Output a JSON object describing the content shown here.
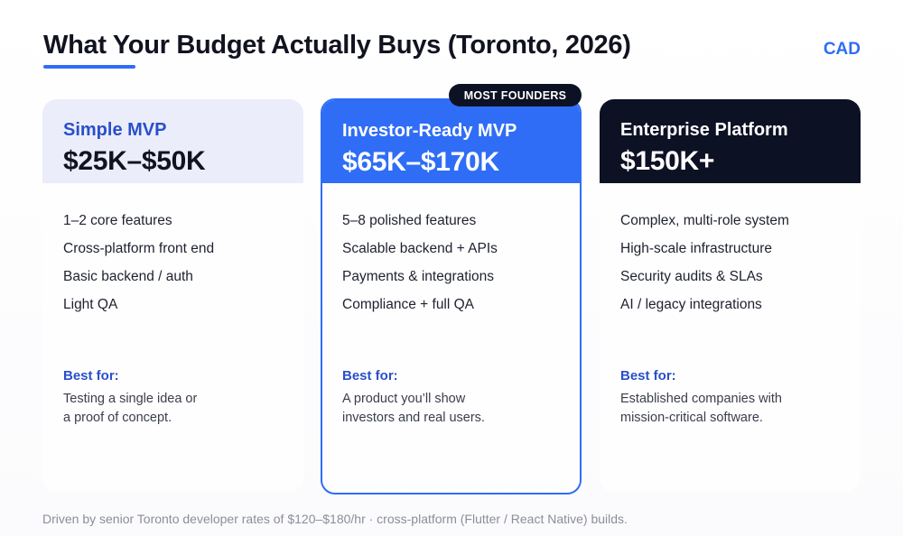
{
  "header": {
    "title": "What Your Budget Actually Buys (Toronto, 2026)",
    "currency": "CAD"
  },
  "badge": "MOST FOUNDERS",
  "tiers": [
    {
      "name": "Simple MVP",
      "price": "$25K–$50K",
      "features": [
        "1–2 core features",
        "Cross-platform front end",
        "Basic backend / auth",
        "Light QA"
      ],
      "best_for_label": "Best for:",
      "best_for_text": [
        "Testing a single idea or",
        "a proof of concept."
      ]
    },
    {
      "name": "Investor-Ready MVP",
      "price": "$65K–$170K",
      "features": [
        "5–8 polished features",
        "Scalable backend + APIs",
        "Payments & integrations",
        "Compliance + full QA"
      ],
      "best_for_label": "Best for:",
      "best_for_text": [
        "A product you’ll show",
        "investors and real users."
      ]
    },
    {
      "name": "Enterprise Platform",
      "price": "$150K+",
      "features": [
        "Complex, multi-role system",
        "High-scale infrastructure",
        "Security audits & SLAs",
        "AI / legacy integrations"
      ],
      "best_for_label": "Best for:",
      "best_for_text": [
        "Established companies with",
        "mission-critical software."
      ]
    }
  ],
  "footnote": "Driven by senior Toronto developer rates of $120–$180/hr · cross-platform (Flutter / React Native) builds.",
  "colors": {
    "accent": "#2f6df6",
    "dark": "#0d1124",
    "light_tint": "#ebedfb",
    "label_blue": "#2a4fc9"
  }
}
